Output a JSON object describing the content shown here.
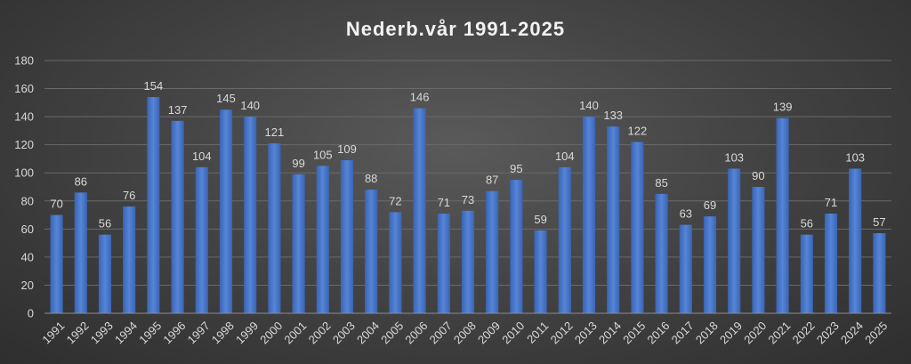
{
  "chart_data": {
    "type": "bar",
    "title": "Nederb.vår 1991-2025",
    "categories": [
      "1991",
      "1992",
      "1993",
      "1994",
      "1995",
      "1996",
      "1997",
      "1998",
      "1999",
      "2000",
      "2001",
      "2002",
      "2003",
      "2004",
      "2005",
      "2006",
      "2007",
      "2008",
      "2009",
      "2010",
      "2011",
      "2012",
      "2013",
      "2014",
      "2015",
      "2016",
      "2017",
      "2018",
      "2019",
      "2020",
      "2021",
      "2022",
      "2023",
      "2024",
      "2025"
    ],
    "values": [
      70,
      86,
      56,
      76,
      154,
      137,
      104,
      145,
      140,
      121,
      99,
      105,
      109,
      88,
      72,
      146,
      71,
      73,
      87,
      95,
      59,
      104,
      140,
      133,
      122,
      85,
      63,
      69,
      103,
      90,
      139,
      56,
      71,
      103,
      57
    ],
    "ylim": [
      0,
      180
    ],
    "yticks": [
      0,
      20,
      40,
      60,
      80,
      100,
      120,
      140,
      160,
      180
    ],
    "grid": true,
    "data_labels": true,
    "bar_color": "#4472c4"
  }
}
